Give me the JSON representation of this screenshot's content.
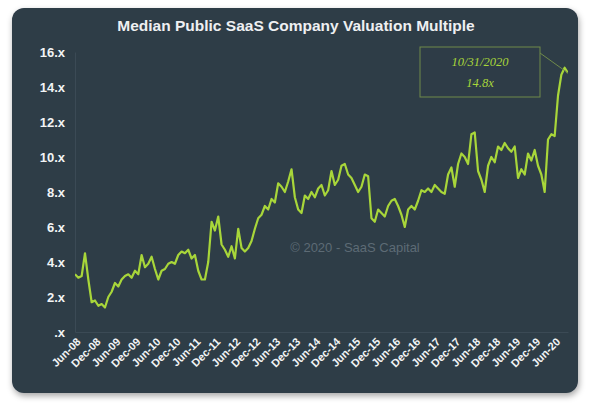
{
  "chart_data": {
    "type": "line",
    "title": "Median Public SaaS Company Valuation Multiple",
    "categories": [
      "Jun-08",
      null,
      null,
      null,
      null,
      null,
      "Dec-08",
      null,
      null,
      null,
      null,
      null,
      "Jun-09",
      null,
      null,
      null,
      null,
      null,
      "Dec-09",
      null,
      null,
      null,
      null,
      null,
      "Jun-10",
      null,
      null,
      null,
      null,
      null,
      "Dec-10",
      null,
      null,
      null,
      null,
      null,
      "Jun-11",
      null,
      null,
      null,
      null,
      null,
      "Dec-11",
      null,
      null,
      null,
      null,
      null,
      "Jun-12",
      null,
      null,
      null,
      null,
      null,
      "Dec-12",
      null,
      null,
      null,
      null,
      null,
      "Jun-13",
      null,
      null,
      null,
      null,
      null,
      "Dec-13",
      null,
      null,
      null,
      null,
      null,
      "Jun-14",
      null,
      null,
      null,
      null,
      null,
      "Dec-14",
      null,
      null,
      null,
      null,
      null,
      "Jun-15",
      null,
      null,
      null,
      null,
      null,
      "Dec-15",
      null,
      null,
      null,
      null,
      null,
      "Jun-16",
      null,
      null,
      null,
      null,
      null,
      "Dec-16",
      null,
      null,
      null,
      null,
      null,
      "Jun-17",
      null,
      null,
      null,
      null,
      null,
      "Dec-17",
      null,
      null,
      null,
      null,
      null,
      "Jun-18",
      null,
      null,
      null,
      null,
      null,
      "Dec-18",
      null,
      null,
      null,
      null,
      null,
      "Jun-19",
      null,
      null,
      null,
      null,
      null,
      "Dec-19",
      null,
      null,
      null,
      null,
      null,
      "Jun-20",
      null,
      null,
      null,
      null
    ],
    "values": [
      3.3,
      3.1,
      3.2,
      4.5,
      3.0,
      1.7,
      1.8,
      1.5,
      1.6,
      1.4,
      2.0,
      2.3,
      2.8,
      2.6,
      3.0,
      3.2,
      3.3,
      3.1,
      3.5,
      3.3,
      4.4,
      3.7,
      3.9,
      4.3,
      3.6,
      3.0,
      3.5,
      3.6,
      3.9,
      4.0,
      3.9,
      4.4,
      4.6,
      4.5,
      4.7,
      4.2,
      4.4,
      3.5,
      3.0,
      3.0,
      4.0,
      6.3,
      5.8,
      6.6,
      5.0,
      4.7,
      4.3,
      4.9,
      4.2,
      5.9,
      4.8,
      4.6,
      4.8,
      5.2,
      5.9,
      6.5,
      6.7,
      7.2,
      7.0,
      7.6,
      7.4,
      8.5,
      8.3,
      8.0,
      8.6,
      9.3,
      7.7,
      7.0,
      6.8,
      7.8,
      7.6,
      8.0,
      7.7,
      8.2,
      8.4,
      7.8,
      8.1,
      9.2,
      8.4,
      8.7,
      9.5,
      9.6,
      9.0,
      8.8,
      8.4,
      8.0,
      8.3,
      9.0,
      8.9,
      6.5,
      6.3,
      7.0,
      6.8,
      6.6,
      7.2,
      7.5,
      7.6,
      7.2,
      6.7,
      6.0,
      7.0,
      7.2,
      7.0,
      7.5,
      8.1,
      8.0,
      8.2,
      8.0,
      8.4,
      8.2,
      8.0,
      7.9,
      9.0,
      9.4,
      8.3,
      9.6,
      10.2,
      10.0,
      9.6,
      11.3,
      11.4,
      9.2,
      8.7,
      8.0,
      9.5,
      10.0,
      9.7,
      10.6,
      10.4,
      10.8,
      10.5,
      10.3,
      10.6,
      8.8,
      9.3,
      9.0,
      10.2,
      9.8,
      10.4,
      9.5,
      9.0,
      8.0,
      11.0,
      11.3,
      11.2,
      13.5,
      14.7,
      15.1,
      14.8
    ],
    "color": "#a8d63a",
    "ylim": [
      0,
      16
    ],
    "yticks": [
      {
        "value": 0,
        "label": ".x"
      },
      {
        "value": 2,
        "label": "2.x"
      },
      {
        "value": 4,
        "label": "4.x"
      },
      {
        "value": 6,
        "label": "6.x"
      },
      {
        "value": 8,
        "label": "8.x"
      },
      {
        "value": 10,
        "label": "10.x"
      },
      {
        "value": 12,
        "label": "12.x"
      },
      {
        "value": 14,
        "label": "14.x"
      },
      {
        "value": 16,
        "label": "16.x"
      }
    ],
    "grid": false,
    "annotations": [
      "10/31/2020",
      "14.8x"
    ],
    "watermark": "© 2020 - SaaS Capital"
  }
}
